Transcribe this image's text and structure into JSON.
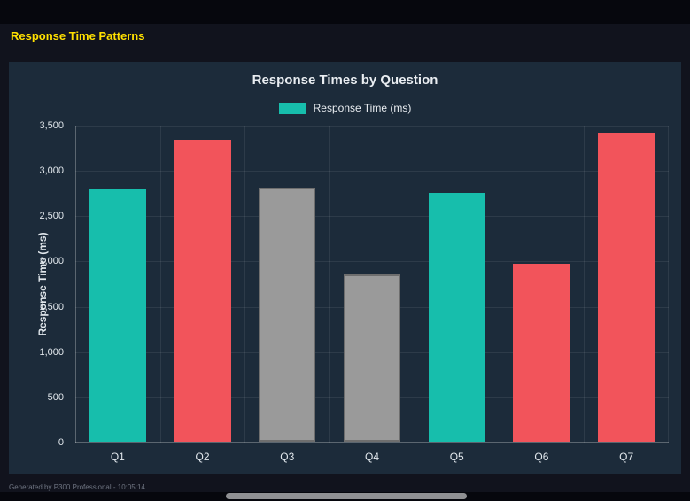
{
  "page": {
    "title": "Response Time Patterns",
    "footer": "Generated by P300 Professional - 10:05:14"
  },
  "chart_data": {
    "type": "bar",
    "title": "Response Times by Question",
    "legend": [
      {
        "label": "Response Time (ms)",
        "color": "#17beac"
      }
    ],
    "categories": [
      "Q1",
      "Q2",
      "Q3",
      "Q4",
      "Q5",
      "Q6",
      "Q7"
    ],
    "values": [
      2800,
      3330,
      2810,
      1850,
      2745,
      1965,
      3410
    ],
    "bar_colors": [
      "#17beac",
      "#f2545b",
      "#9a9a9a",
      "#9a9a9a",
      "#17beac",
      "#f2545b",
      "#f2545b"
    ],
    "bar_border_colors": [
      "#17beac",
      "#f2545b",
      "#6e6e6e",
      "#6e6e6e",
      "#17beac",
      "#f2545b",
      "#f2545b"
    ],
    "xlabel": "",
    "ylabel": "Response Time (ms)",
    "ylim": [
      0,
      3500
    ],
    "yticks": [
      0,
      500,
      1000,
      1500,
      2000,
      2500,
      3000,
      3500
    ],
    "ytick_labels": [
      "0",
      "500",
      "1,000",
      "1,500",
      "2,000",
      "2,500",
      "3,000",
      "3,500"
    ],
    "grid": true,
    "legend_position": "top"
  },
  "colors": {
    "accent_yellow": "#ffe000",
    "teal": "#17beac",
    "red": "#f2545b",
    "gray": "#9a9a9a",
    "panel_bg": "#1c2b3a",
    "page_bg": "#11131d"
  }
}
